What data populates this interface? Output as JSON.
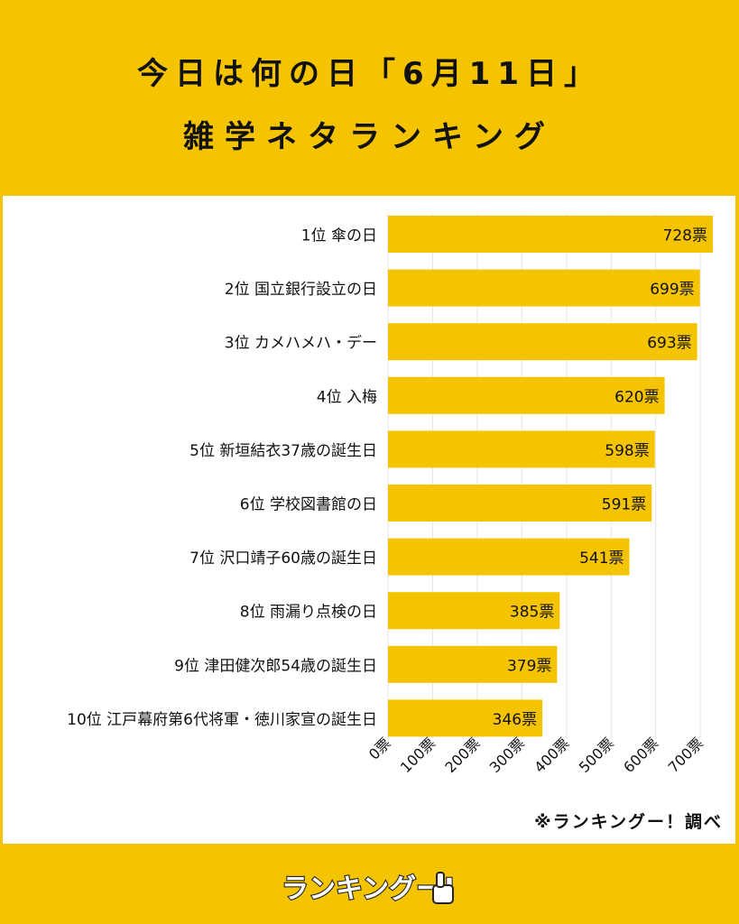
{
  "header": {
    "title_line1": "今日は何の日「6月11日」",
    "title_line2": "雑学ネタランキング"
  },
  "chart_data": {
    "type": "bar",
    "orientation": "horizontal",
    "categories": [
      "1位 傘の日",
      "2位 国立銀行設立の日",
      "3位 カメハメハ・デー",
      "4位 入梅",
      "5位 新垣結衣37歳の誕生日",
      "6位 学校図書館の日",
      "7位 沢口靖子60歳の誕生日",
      "8位 雨漏り点検の日",
      "9位 津田健次郎54歳の誕生日",
      "10位 江戸幕府第6代将軍・徳川家宣の誕生日"
    ],
    "values": [
      728,
      699,
      693,
      620,
      598,
      591,
      541,
      385,
      379,
      346
    ],
    "value_labels": [
      "728票",
      "699票",
      "693票",
      "620票",
      "598票",
      "591票",
      "541票",
      "385票",
      "379票",
      "346票"
    ],
    "x_ticks": [
      0,
      100,
      200,
      300,
      400,
      500,
      600,
      700
    ],
    "x_tick_labels": [
      "0票",
      "100票",
      "200票",
      "300票",
      "400票",
      "500票",
      "600票",
      "700票"
    ],
    "xlim": [
      0,
      728
    ],
    "grid": true,
    "bar_color": "#f5c400"
  },
  "footer": {
    "credit": "※ランキングー！調べ",
    "logo_text": "ランキングー!"
  },
  "colors": {
    "background": "#f5c400",
    "panel": "#ffffff",
    "text": "#111111",
    "grid": "#e6e6e6"
  }
}
